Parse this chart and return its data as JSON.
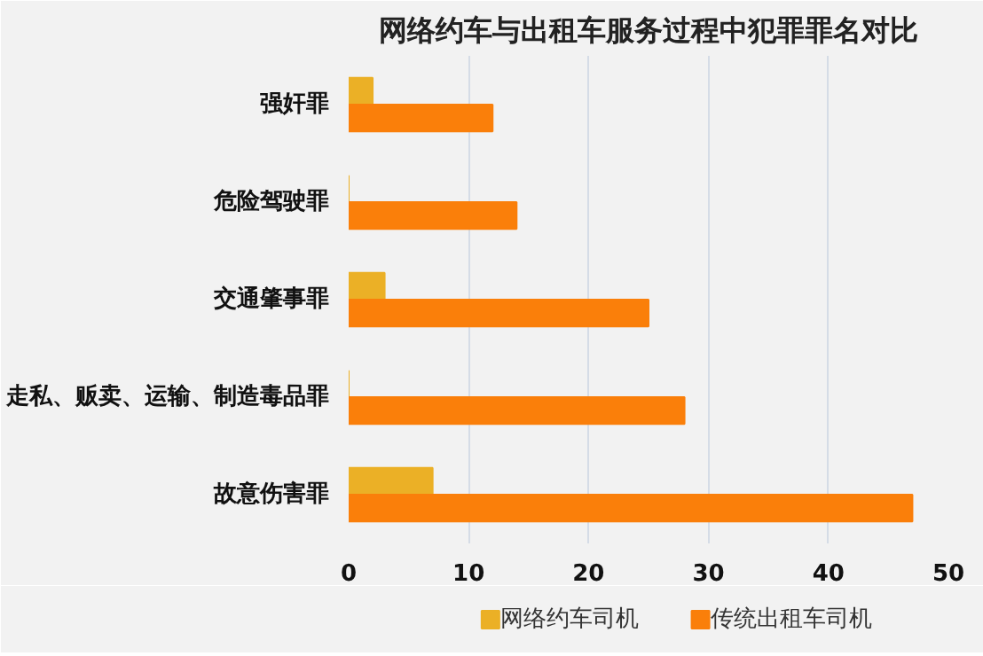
{
  "chart_data": {
    "type": "bar",
    "orientation": "horizontal",
    "title": "网络约车与出租车服务过程中犯罪罪名对比",
    "categories": [
      "强奸罪",
      "危险驾驶罪",
      "交通肇事罪",
      "走私、贩卖、运输、制造毒品罪",
      "故意伤害罪"
    ],
    "series": [
      {
        "name": "网络约车司机",
        "color": "#ebb026",
        "values": [
          2,
          0,
          3,
          0,
          7
        ]
      },
      {
        "name": "传统出租车司机",
        "color": "#fa7f0a",
        "values": [
          12,
          14,
          25,
          28,
          47
        ]
      }
    ],
    "xlim": [
      0,
      50
    ],
    "xticks": [
      0,
      10,
      20,
      30,
      40,
      50
    ],
    "grid": "x",
    "legend": "bottom"
  }
}
